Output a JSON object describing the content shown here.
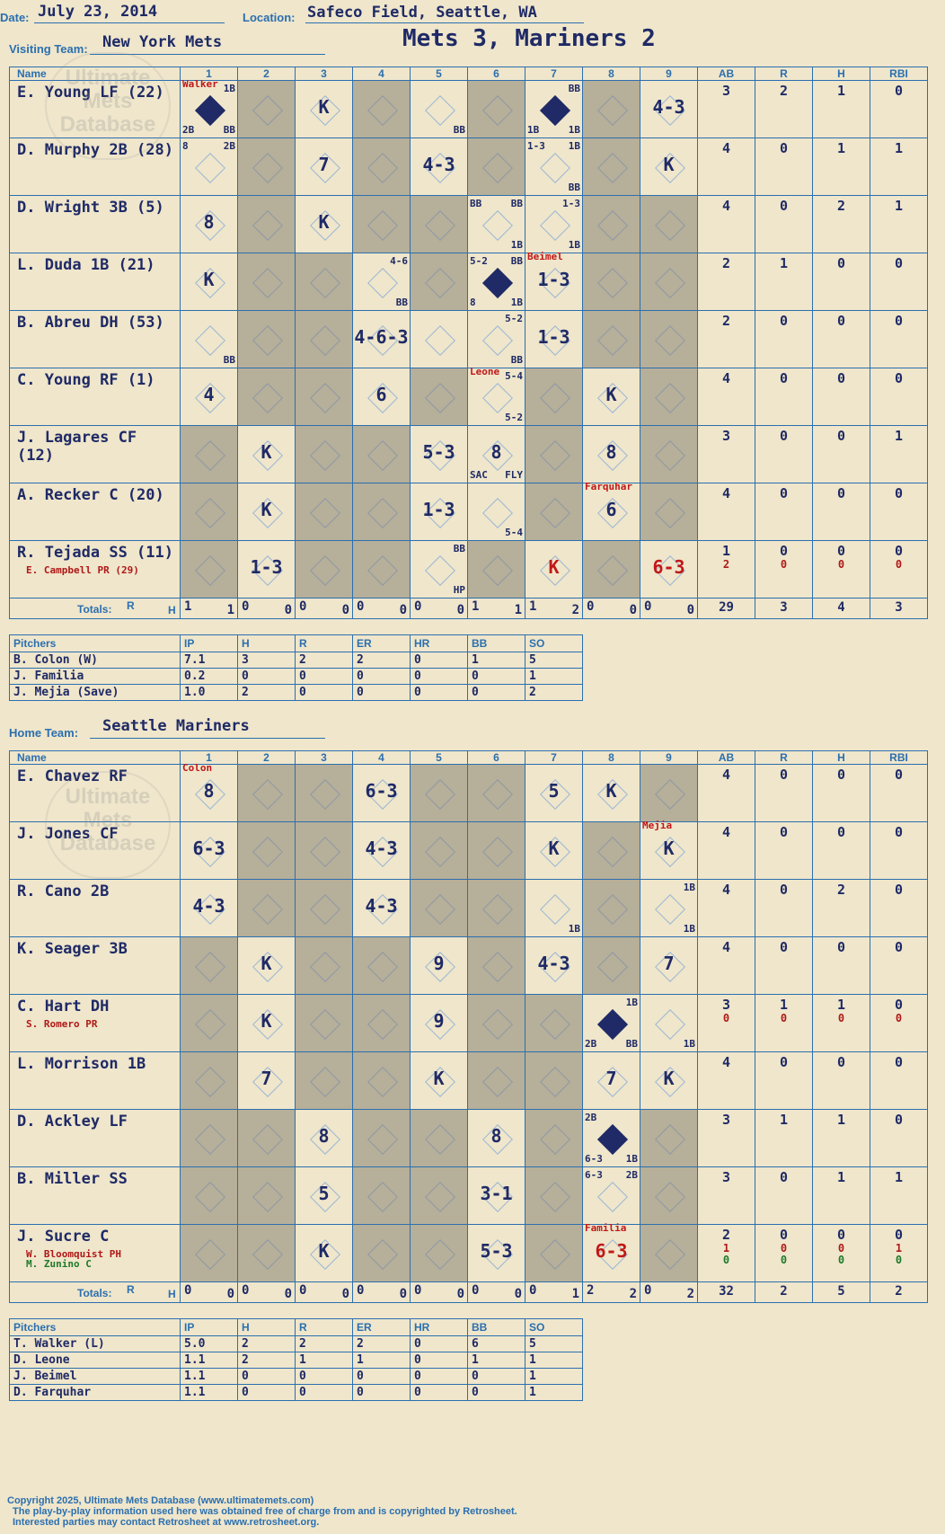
{
  "header": {
    "date_label": "Date:",
    "date": "July 23, 2014",
    "location_label": "Location:",
    "location": "Safeco Field, Seattle, WA",
    "title": "Mets 3, Mariners 2"
  },
  "watermark": "Ultimate Mets Database",
  "visitor": {
    "team_label": "Visiting Team:",
    "team": "New York Mets",
    "columns": [
      "Name",
      "1",
      "2",
      "3",
      "4",
      "5",
      "6",
      "7",
      "8",
      "9",
      "AB",
      "R",
      "H",
      "RBI"
    ],
    "players": [
      {
        "name": "E. Young LF (22)",
        "ab": "3",
        "r": "2",
        "h": "1",
        "rbi": "0"
      },
      {
        "name": "D. Murphy 2B (28)",
        "ab": "4",
        "r": "0",
        "h": "1",
        "rbi": "1"
      },
      {
        "name": "D. Wright 3B (5)",
        "ab": "4",
        "r": "0",
        "h": "2",
        "rbi": "1"
      },
      {
        "name": "L. Duda 1B (21)",
        "ab": "2",
        "r": "1",
        "h": "0",
        "rbi": "0"
      },
      {
        "name": "B. Abreu DH (53)",
        "ab": "2",
        "r": "0",
        "h": "0",
        "rbi": "0"
      },
      {
        "name": "C. Young RF (1)",
        "ab": "4",
        "r": "0",
        "h": "0",
        "rbi": "0"
      },
      {
        "name": "J. Lagares CF (12)",
        "ab": "3",
        "r": "0",
        "h": "0",
        "rbi": "1"
      },
      {
        "name": "A. Recker C (20)",
        "ab": "4",
        "r": "0",
        "h": "0",
        "rbi": "0"
      },
      {
        "name": "R. Tejada SS (11)",
        "sub": "E. Campbell PR (29)",
        "ab": "1",
        "r": "0",
        "h": "0",
        "rbi": "0",
        "ab2": "2",
        "r2": "0",
        "h2": "0",
        "rbi2": "0"
      }
    ],
    "totals_label": "Totals:",
    "rh_labels": [
      "R",
      "H"
    ],
    "inning_totals": [
      [
        "1",
        "1"
      ],
      [
        "0",
        "0"
      ],
      [
        "0",
        "0"
      ],
      [
        "0",
        "0"
      ],
      [
        "0",
        "0"
      ],
      [
        "1",
        "1"
      ],
      [
        "1",
        "2"
      ],
      [
        "0",
        "0"
      ],
      [
        "0",
        "0"
      ]
    ],
    "totals": {
      "ab": "29",
      "r": "3",
      "h": "4",
      "rbi": "3"
    },
    "plays": [
      {
        "row": 0,
        "inn": 1,
        "pitcher": "Walker",
        "c": [
          [
            "1B",
            "tr"
          ],
          [
            "2B",
            "bl"
          ],
          [
            "BB",
            "br"
          ]
        ],
        "run": true
      },
      {
        "row": 0,
        "inn": 3,
        "res": "K"
      },
      {
        "row": 0,
        "inn": 5,
        "c": [
          [
            "BB",
            "br"
          ]
        ]
      },
      {
        "row": 0,
        "inn": 7,
        "c": [
          [
            "BB",
            "tr"
          ],
          [
            "1B",
            "bl"
          ],
          [
            "1B",
            "br"
          ]
        ],
        "run": true
      },
      {
        "row": 0,
        "inn": 9,
        "res": "4-3"
      },
      {
        "row": 1,
        "inn": 1,
        "c": [
          [
            "8",
            "tl"
          ],
          [
            "2B",
            "tr"
          ]
        ]
      },
      {
        "row": 1,
        "inn": 3,
        "res": "7"
      },
      {
        "row": 1,
        "inn": 5,
        "res": "4-3"
      },
      {
        "row": 1,
        "inn": 7,
        "c": [
          [
            "1-3",
            "tl"
          ],
          [
            "1B",
            "tr"
          ],
          [
            "BB",
            "br"
          ]
        ]
      },
      {
        "row": 1,
        "inn": 9,
        "res": "K"
      },
      {
        "row": 2,
        "inn": 1,
        "res": "8"
      },
      {
        "row": 2,
        "inn": 3,
        "res": "K"
      },
      {
        "row": 2,
        "inn": 6,
        "c": [
          [
            "BB",
            "tl"
          ],
          [
            "BB",
            "tr"
          ],
          [
            "1B",
            "br"
          ]
        ]
      },
      {
        "row": 2,
        "inn": 7,
        "c": [
          [
            "1-3",
            "tr"
          ],
          [
            "1B",
            "br"
          ]
        ]
      },
      {
        "row": 3,
        "inn": 1,
        "res": "K"
      },
      {
        "row": 3,
        "inn": 4,
        "c": [
          [
            "4-6",
            "tr"
          ],
          [
            "BB",
            "br"
          ]
        ]
      },
      {
        "row": 3,
        "inn": 6,
        "c": [
          [
            "5-2",
            "tl"
          ],
          [
            "BB",
            "tr"
          ],
          [
            "8",
            "bl"
          ],
          [
            "1B",
            "br"
          ]
        ],
        "run": true
      },
      {
        "row": 3,
        "inn": 7,
        "pitcher": "Beimel",
        "res": "1-3"
      },
      {
        "row": 4,
        "inn": 1,
        "c": [
          [
            "BB",
            "br"
          ]
        ]
      },
      {
        "row": 4,
        "inn": 4,
        "res": "4-6-3"
      },
      {
        "row": 4,
        "inn": 6,
        "c": [
          [
            "5-2",
            "tr"
          ],
          [
            "BB",
            "br"
          ]
        ]
      },
      {
        "row": 4,
        "inn": 7,
        "res": "1-3"
      },
      {
        "row": 5,
        "inn": 1,
        "res": "4"
      },
      {
        "row": 5,
        "inn": 4,
        "res": "6"
      },
      {
        "row": 5,
        "inn": 6,
        "pitcher": "Leone",
        "c": [
          [
            "5-4",
            "tr"
          ],
          [
            "5-2",
            "br"
          ]
        ]
      },
      {
        "row": 5,
        "inn": 8,
        "res": "K"
      },
      {
        "row": 6,
        "inn": 2,
        "res": "K"
      },
      {
        "row": 6,
        "inn": 5,
        "res": "5-3"
      },
      {
        "row": 6,
        "inn": 6,
        "res": "8",
        "c": [
          [
            "SAC",
            "bl"
          ],
          [
            "FLY",
            "br"
          ]
        ]
      },
      {
        "row": 6,
        "inn": 8,
        "res": "8"
      },
      {
        "row": 7,
        "inn": 2,
        "res": "K"
      },
      {
        "row": 7,
        "inn": 5,
        "res": "1-3"
      },
      {
        "row": 7,
        "inn": 6,
        "c": [
          [
            "5-4",
            "br"
          ]
        ]
      },
      {
        "row": 7,
        "inn": 8,
        "pitcher": "Farquhar",
        "res": "6"
      },
      {
        "row": 8,
        "inn": 2,
        "res": "1-3"
      },
      {
        "row": 8,
        "inn": 5,
        "c": [
          [
            "BB",
            "tr"
          ],
          [
            "HP",
            "br"
          ]
        ]
      },
      {
        "row": 8,
        "inn": 7,
        "res": "K",
        "red": true
      },
      {
        "row": 8,
        "inn": 9,
        "res": "6-3",
        "red": true
      }
    ],
    "shaded": [
      [
        2,
        4,
        6,
        8
      ],
      [
        2,
        4,
        6,
        8
      ],
      [
        2,
        4,
        5,
        8,
        9
      ],
      [
        2,
        3,
        5,
        8,
        9
      ],
      [
        2,
        3,
        8,
        9
      ],
      [
        2,
        3,
        5,
        7,
        9
      ],
      [
        1,
        3,
        4,
        7,
        9
      ],
      [
        1,
        3,
        4,
        7,
        9
      ],
      [
        1,
        3,
        4,
        6,
        8
      ]
    ]
  },
  "visitor_pitchers": {
    "columns": [
      "Pitchers",
      "IP",
      "H",
      "R",
      "ER",
      "HR",
      "BB",
      "SO"
    ],
    "rows": [
      [
        "B. Colon (W)",
        "7.1",
        "3",
        "2",
        "2",
        "0",
        "1",
        "5"
      ],
      [
        "J. Familia",
        "0.2",
        "0",
        "0",
        "0",
        "0",
        "0",
        "1"
      ],
      [
        "J. Mejia (Save)",
        "1.0",
        "2",
        "0",
        "0",
        "0",
        "0",
        "2"
      ]
    ]
  },
  "home": {
    "team_label": "Home Team:",
    "team": "Seattle Mariners",
    "columns": [
      "Name",
      "1",
      "2",
      "3",
      "4",
      "5",
      "6",
      "7",
      "8",
      "9",
      "AB",
      "R",
      "H",
      "RBI"
    ],
    "players": [
      {
        "name": "E. Chavez RF",
        "ab": "4",
        "r": "0",
        "h": "0",
        "rbi": "0"
      },
      {
        "name": "J. Jones CF",
        "ab": "4",
        "r": "0",
        "h": "0",
        "rbi": "0"
      },
      {
        "name": "R. Cano 2B",
        "ab": "4",
        "r": "0",
        "h": "2",
        "rbi": "0"
      },
      {
        "name": "K. Seager 3B",
        "ab": "4",
        "r": "0",
        "h": "0",
        "rbi": "0"
      },
      {
        "name": "C. Hart DH",
        "sub": "S. Romero PR",
        "ab": "3",
        "r": "1",
        "h": "1",
        "rbi": "0",
        "ab2": "0",
        "r2": "0",
        "h2": "0",
        "rbi2": "0"
      },
      {
        "name": "L. Morrison 1B",
        "ab": "4",
        "r": "0",
        "h": "0",
        "rbi": "0"
      },
      {
        "name": "D. Ackley LF",
        "ab": "3",
        "r": "1",
        "h": "1",
        "rbi": "0"
      },
      {
        "name": "B. Miller SS",
        "ab": "3",
        "r": "0",
        "h": "1",
        "rbi": "1"
      },
      {
        "name": "J. Sucre C",
        "sub": "W. Bloomquist PH",
        "sub2": "M. Zunino C",
        "ab": "2",
        "r": "0",
        "h": "0",
        "rbi": "0",
        "ab2": "1",
        "r2": "0",
        "h2": "0",
        "rbi2": "1",
        "ab3": "0",
        "r3": "0",
        "h3": "0",
        "rbi3": "0"
      }
    ],
    "totals_label": "Totals:",
    "rh_labels": [
      "R",
      "H"
    ],
    "inning_totals": [
      [
        "0",
        "0"
      ],
      [
        "0",
        "0"
      ],
      [
        "0",
        "0"
      ],
      [
        "0",
        "0"
      ],
      [
        "0",
        "0"
      ],
      [
        "0",
        "0"
      ],
      [
        "0",
        "1"
      ],
      [
        "2",
        "2"
      ],
      [
        "0",
        "2"
      ]
    ],
    "totals": {
      "ab": "32",
      "r": "2",
      "h": "5",
      "rbi": "2"
    },
    "plays": [
      {
        "row": 0,
        "inn": 1,
        "pitcher": "Colon",
        "res": "8"
      },
      {
        "row": 0,
        "inn": 4,
        "res": "6-3"
      },
      {
        "row": 0,
        "inn": 7,
        "res": "5"
      },
      {
        "row": 0,
        "inn": 8,
        "res": "K"
      },
      {
        "row": 1,
        "inn": 1,
        "res": "6-3"
      },
      {
        "row": 1,
        "inn": 4,
        "res": "4-3"
      },
      {
        "row": 1,
        "inn": 7,
        "res": "K"
      },
      {
        "row": 1,
        "inn": 9,
        "pitcher": "Mejia",
        "res": "K"
      },
      {
        "row": 2,
        "inn": 1,
        "res": "4-3"
      },
      {
        "row": 2,
        "inn": 4,
        "res": "4-3"
      },
      {
        "row": 2,
        "inn": 7,
        "c": [
          [
            "1B",
            "br"
          ]
        ]
      },
      {
        "row": 2,
        "inn": 9,
        "c": [
          [
            "1B",
            "tr"
          ],
          [
            "1B",
            "br"
          ]
        ]
      },
      {
        "row": 3,
        "inn": 2,
        "res": "K"
      },
      {
        "row": 3,
        "inn": 5,
        "res": "9"
      },
      {
        "row": 3,
        "inn": 7,
        "res": "4-3"
      },
      {
        "row": 3,
        "inn": 9,
        "res": "7"
      },
      {
        "row": 4,
        "inn": 2,
        "res": "K"
      },
      {
        "row": 4,
        "inn": 5,
        "res": "9"
      },
      {
        "row": 4,
        "inn": 8,
        "c": [
          [
            "1B",
            "tr"
          ],
          [
            "2B",
            "bl"
          ],
          [
            "BB",
            "br"
          ]
        ],
        "run": true
      },
      {
        "row": 4,
        "inn": 9,
        "c": [
          [
            "1B",
            "br"
          ]
        ]
      },
      {
        "row": 5,
        "inn": 2,
        "res": "7"
      },
      {
        "row": 5,
        "inn": 5,
        "res": "K"
      },
      {
        "row": 5,
        "inn": 8,
        "res": "7"
      },
      {
        "row": 5,
        "inn": 9,
        "res": "K"
      },
      {
        "row": 6,
        "inn": 3,
        "res": "8"
      },
      {
        "row": 6,
        "inn": 6,
        "res": "8"
      },
      {
        "row": 6,
        "inn": 8,
        "c": [
          [
            "2B",
            "tl"
          ],
          [
            "6-3",
            "bl"
          ],
          [
            "1B",
            "br"
          ]
        ],
        "run": true
      },
      {
        "row": 7,
        "inn": 3,
        "res": "5"
      },
      {
        "row": 7,
        "inn": 6,
        "res": "3-1"
      },
      {
        "row": 7,
        "inn": 8,
        "c": [
          [
            "6-3",
            "tl"
          ],
          [
            "2B",
            "tr"
          ]
        ]
      },
      {
        "row": 8,
        "inn": 3,
        "res": "K"
      },
      {
        "row": 8,
        "inn": 6,
        "res": "5-3"
      },
      {
        "row": 8,
        "inn": 8,
        "pitcher": "Familia",
        "res": "6-3",
        "red": true
      }
    ],
    "shaded": [
      [
        2,
        3,
        5,
        6,
        9
      ],
      [
        2,
        3,
        5,
        6,
        8
      ],
      [
        2,
        3,
        5,
        6,
        8
      ],
      [
        1,
        3,
        4,
        6,
        8
      ],
      [
        1,
        3,
        4,
        6,
        7
      ],
      [
        1,
        3,
        4,
        6,
        7
      ],
      [
        1,
        2,
        4,
        5,
        7,
        9
      ],
      [
        1,
        2,
        4,
        5,
        7,
        9
      ],
      [
        1,
        2,
        4,
        5,
        7,
        9
      ]
    ]
  },
  "home_pitchers": {
    "columns": [
      "Pitchers",
      "IP",
      "H",
      "R",
      "ER",
      "HR",
      "BB",
      "SO"
    ],
    "rows": [
      [
        "T. Walker (L)",
        "5.0",
        "2",
        "2",
        "2",
        "0",
        "6",
        "5"
      ],
      [
        "D. Leone",
        "1.1",
        "2",
        "1",
        "1",
        "0",
        "1",
        "1"
      ],
      [
        "J. Beimel",
        "1.1",
        "0",
        "0",
        "0",
        "0",
        "0",
        "1"
      ],
      [
        "D. Farquhar",
        "1.1",
        "0",
        "0",
        "0",
        "0",
        "0",
        "1"
      ]
    ]
  },
  "footer": {
    "line1": "Copyright 2025, Ultimate Mets Database (www.ultimatemets.com)",
    "line2": "The play-by-play information used here was obtained free of charge from and is copyrighted by Retrosheet.",
    "line3": "Interested parties may contact Retrosheet at www.retrosheet.org."
  }
}
